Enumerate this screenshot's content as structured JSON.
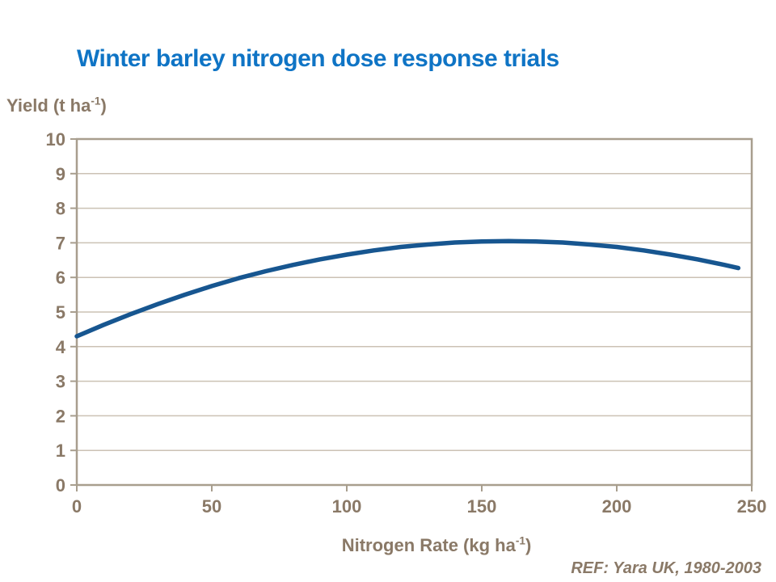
{
  "page": {
    "title": "Winter barley nitrogen dose response trials",
    "ref_note": "REF: Yara UK, 1980-2003"
  },
  "colors": {
    "background": "#FFFFFF",
    "title_blue": "#0F74C5",
    "curve_blue": "#175690",
    "axis_line": "#A89E8E",
    "gridline": "#CBC2B4",
    "label_text": "#8A7967"
  },
  "y_axis_caption": {
    "prefix": "Yield (t ha",
    "superscript": "-1",
    "suffix": ")"
  },
  "x_axis_caption": {
    "prefix": "Nitrogen Rate (kg ha",
    "superscript": "-1",
    "suffix": ")"
  },
  "chart_data": {
    "type": "line",
    "title": "Winter barley nitrogen dose response trials",
    "xlabel": "Nitrogen Rate (kg ha-1)",
    "ylabel": "Yield (t ha-1)",
    "xlim": [
      0,
      250
    ],
    "ylim": [
      0,
      10
    ],
    "x_ticks": [
      "0",
      "50",
      "100",
      "150",
      "200",
      "250"
    ],
    "x_tick_values": [
      0,
      50,
      100,
      150,
      200,
      250
    ],
    "y_ticks": [
      "0",
      "1",
      "2",
      "3",
      "4",
      "5",
      "6",
      "7",
      "8",
      "9",
      "10"
    ],
    "y_tick_values": [
      0,
      1,
      2,
      3,
      4,
      5,
      6,
      7,
      8,
      9,
      10
    ],
    "grid": "horizontal-only",
    "legend": "none",
    "series": [
      {
        "name": "Winter barley yield response curve",
        "color": "#175690",
        "peak": [
          160,
          7.05
        ],
        "start": [
          0,
          4.3
        ],
        "end": [
          245,
          6.27
        ],
        "points": [
          [
            0,
            4.3
          ],
          [
            10,
            4.63
          ],
          [
            20,
            4.94
          ],
          [
            30,
            5.23
          ],
          [
            40,
            5.5
          ],
          [
            50,
            5.75
          ],
          [
            60,
            5.98
          ],
          [
            70,
            6.18
          ],
          [
            80,
            6.36
          ],
          [
            90,
            6.52
          ],
          [
            100,
            6.66
          ],
          [
            110,
            6.78
          ],
          [
            120,
            6.88
          ],
          [
            130,
            6.95
          ],
          [
            140,
            7.01
          ],
          [
            150,
            7.04
          ],
          [
            160,
            7.05
          ],
          [
            170,
            7.04
          ],
          [
            180,
            7.01
          ],
          [
            190,
            6.95
          ],
          [
            200,
            6.88
          ],
          [
            210,
            6.78
          ],
          [
            220,
            6.66
          ],
          [
            230,
            6.52
          ],
          [
            240,
            6.36
          ],
          [
            245,
            6.27
          ]
        ]
      }
    ]
  }
}
